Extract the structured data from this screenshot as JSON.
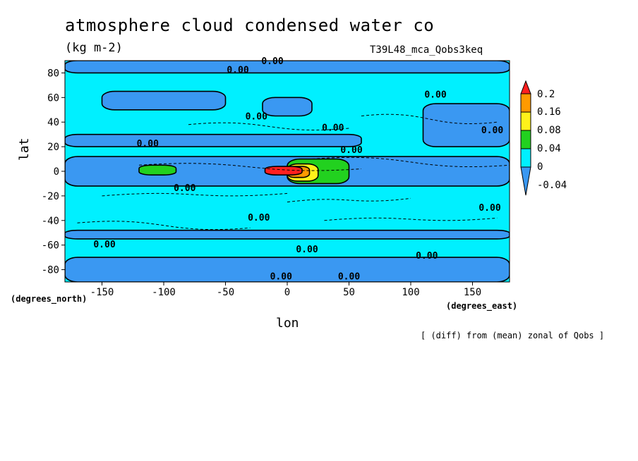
{
  "title": "atmosphere cloud condensed water co",
  "units": "(kg m-2)",
  "experiment": "T39L48_mca_Qobs3keq",
  "note": "[ (diff) from (mean) zonal of Qobs ]",
  "colors": {
    "level_low": "#3a98f2",
    "level_zero": "#00f0ff",
    "level_green": "#22d11f",
    "level_yellow": "#fff21a",
    "level_orange": "#ff9a00",
    "level_red": "#ff1f1f"
  },
  "chart_data": {
    "type": "heatmap",
    "title": "atmosphere cloud condensed water co",
    "units": "(kg m-2)",
    "xlabel": "lon",
    "ylabel": "lat",
    "x_units": "(degrees_east)",
    "y_units": "(degrees_north)",
    "xlim": [
      -180,
      180
    ],
    "ylim": [
      -90,
      90
    ],
    "x_ticks": [
      -150,
      -100,
      -50,
      0,
      50,
      100,
      150
    ],
    "y_ticks": [
      80,
      60,
      40,
      20,
      0,
      -20,
      -40,
      -60,
      -80
    ],
    "legend": {
      "type": "colorbar",
      "position": "right",
      "levels": [
        0.2,
        0.16,
        0.08,
        0.04,
        0,
        -0.04
      ],
      "colors": [
        "#ff1f1f",
        "#ff9a00",
        "#fff21a",
        "#22d11f",
        "#00f0ff",
        "#3a98f2"
      ]
    },
    "contour_label": "0.00",
    "regions": [
      {
        "level": "low",
        "lon": [
          -180,
          180
        ],
        "lat": [
          80,
          90
        ]
      },
      {
        "level": "low",
        "lon": [
          -150,
          -50
        ],
        "lat": [
          50,
          65
        ]
      },
      {
        "level": "low",
        "lon": [
          -20,
          20
        ],
        "lat": [
          45,
          60
        ]
      },
      {
        "level": "low",
        "lon": [
          110,
          180
        ],
        "lat": [
          20,
          55
        ]
      },
      {
        "level": "low",
        "lon": [
          -180,
          60
        ],
        "lat": [
          20,
          30
        ]
      },
      {
        "level": "low",
        "lon": [
          -180,
          180
        ],
        "lat": [
          -12,
          12
        ]
      },
      {
        "level": "low",
        "lon": [
          -180,
          180
        ],
        "lat": [
          -48,
          -55
        ]
      },
      {
        "level": "low",
        "lon": [
          -180,
          180
        ],
        "lat": [
          -70,
          -90
        ]
      },
      {
        "level": "green",
        "lon": [
          -120,
          -90
        ],
        "lat": [
          -3,
          5
        ]
      },
      {
        "level": "green",
        "lon": [
          0,
          50
        ],
        "lat": [
          -10,
          10
        ]
      },
      {
        "level": "yellow",
        "lon": [
          0,
          25
        ],
        "lat": [
          -8,
          6
        ]
      },
      {
        "level": "orange",
        "lon": [
          0,
          18
        ],
        "lat": [
          -5,
          4
        ]
      },
      {
        "level": "red",
        "lon": [
          -18,
          12
        ],
        "lat": [
          -3,
          4
        ]
      }
    ]
  }
}
